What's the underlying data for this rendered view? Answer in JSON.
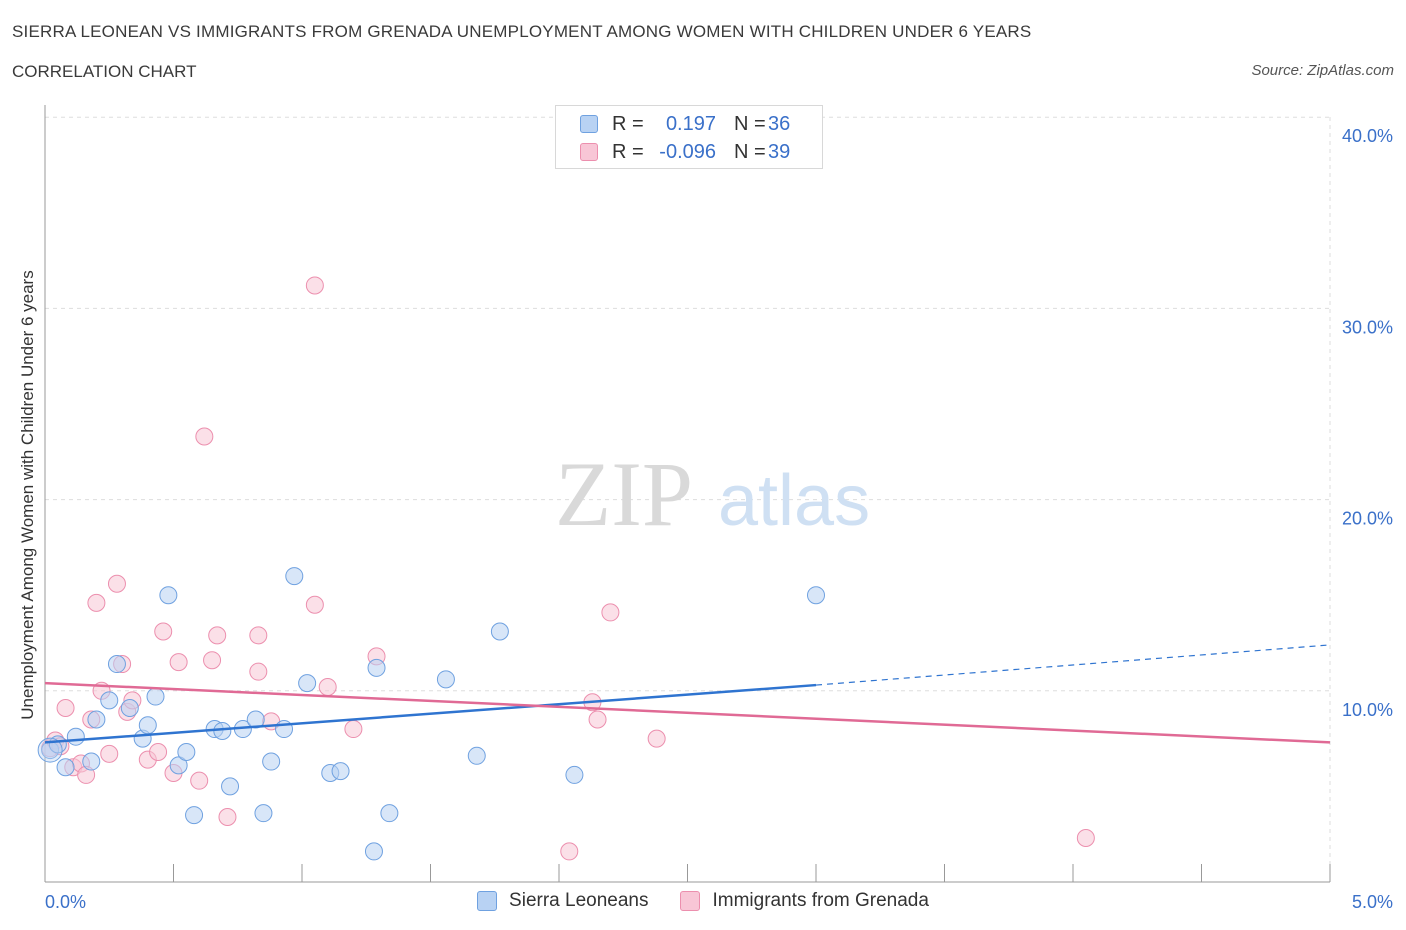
{
  "header": {
    "title": "SIERRA LEONEAN VS IMMIGRANTS FROM GRENADA UNEMPLOYMENT AMONG WOMEN WITH CHILDREN UNDER 6 YEARS",
    "subtitle": "CORRELATION CHART",
    "source": "Source: ZipAtlas.com"
  },
  "watermark": {
    "zip": "ZIP",
    "atlas": "atlas"
  },
  "legend": {
    "rows": [
      {
        "r_label": "R =",
        "r_value": "0.197",
        "n_label": "N =",
        "n_value": "36"
      },
      {
        "r_label": "R =",
        "r_value": "-0.096",
        "n_label": "N =",
        "n_value": "39"
      }
    ]
  },
  "colors": {
    "blue_fill": "#b8d2f3",
    "blue_stroke": "#6fa1e0",
    "blue_line": "#2f74d0",
    "pink_fill": "#f8c6d6",
    "pink_stroke": "#ec8fae",
    "pink_line": "#e06a95",
    "axis_text": "#3a70c9",
    "grid": "#dddddd"
  },
  "chart_data": {
    "type": "scatter",
    "title": "SIERRA LEONEAN VS IMMIGRANTS FROM GRENADA UNEMPLOYMENT AMONG WOMEN WITH CHILDREN UNDER 6 YEARS",
    "xlabel": "",
    "ylabel": "Unemployment Among Women with Children Under 6 years",
    "xlim": [
      0,
      5
    ],
    "ylim": [
      0,
      40
    ],
    "x_tick_labels": [
      "0.0%",
      "5.0%"
    ],
    "y_tick_labels": [
      "10.0%",
      "20.0%",
      "30.0%",
      "40.0%"
    ],
    "y_ticks": [
      10,
      20,
      30,
      40
    ],
    "grid": true,
    "legend_position": "top-center and bottom",
    "series": [
      {
        "name": "Sierra Leoneans",
        "color": "#6fa1e0",
        "r": 0.197,
        "n": 36,
        "trend": {
          "x0": 0.0,
          "y0": 7.3,
          "x1": 3.0,
          "y1": 10.3,
          "dashed_to_x": 5.0,
          "dashed_to_y": 12.4
        },
        "points": [
          [
            0.02,
            6.9
          ],
          [
            0.05,
            7.2
          ],
          [
            0.08,
            6.0
          ],
          [
            0.12,
            7.6
          ],
          [
            0.18,
            6.3
          ],
          [
            0.2,
            8.5
          ],
          [
            0.25,
            9.5
          ],
          [
            0.28,
            11.4
          ],
          [
            0.33,
            9.1
          ],
          [
            0.38,
            7.5
          ],
          [
            0.4,
            8.2
          ],
          [
            0.43,
            9.7
          ],
          [
            0.48,
            15.0
          ],
          [
            0.52,
            6.1
          ],
          [
            0.55,
            6.8
          ],
          [
            0.58,
            3.5
          ],
          [
            0.66,
            8.0
          ],
          [
            0.69,
            7.9
          ],
          [
            0.72,
            5.0
          ],
          [
            0.77,
            8.0
          ],
          [
            0.82,
            8.5
          ],
          [
            0.85,
            3.6
          ],
          [
            0.88,
            6.3
          ],
          [
            0.93,
            8.0
          ],
          [
            0.97,
            16.0
          ],
          [
            1.02,
            10.4
          ],
          [
            1.11,
            5.7
          ],
          [
            1.15,
            5.8
          ],
          [
            1.28,
            1.6
          ],
          [
            1.29,
            11.2
          ],
          [
            1.34,
            3.6
          ],
          [
            1.56,
            10.6
          ],
          [
            1.68,
            6.6
          ],
          [
            1.77,
            13.1
          ],
          [
            2.06,
            5.6
          ],
          [
            3.0,
            15.0
          ]
        ]
      },
      {
        "name": "Immigrants from Grenada",
        "color": "#ec8fae",
        "r": -0.096,
        "n": 39,
        "trend": {
          "x0": 0.0,
          "y0": 10.4,
          "x1": 5.0,
          "y1": 7.3
        },
        "points": [
          [
            0.02,
            7.0
          ],
          [
            0.04,
            7.4
          ],
          [
            0.06,
            7.1
          ],
          [
            0.08,
            9.1
          ],
          [
            0.11,
            6.0
          ],
          [
            0.14,
            6.2
          ],
          [
            0.16,
            5.6
          ],
          [
            0.18,
            8.5
          ],
          [
            0.2,
            14.6
          ],
          [
            0.22,
            10.0
          ],
          [
            0.25,
            6.7
          ],
          [
            0.28,
            15.6
          ],
          [
            0.3,
            11.4
          ],
          [
            0.32,
            8.9
          ],
          [
            0.34,
            9.5
          ],
          [
            0.4,
            6.4
          ],
          [
            0.44,
            6.8
          ],
          [
            0.46,
            13.1
          ],
          [
            0.5,
            5.7
          ],
          [
            0.52,
            11.5
          ],
          [
            0.6,
            5.3
          ],
          [
            0.62,
            23.3
          ],
          [
            0.65,
            11.6
          ],
          [
            0.67,
            12.9
          ],
          [
            0.71,
            3.4
          ],
          [
            0.83,
            12.9
          ],
          [
            0.83,
            11.0
          ],
          [
            0.88,
            8.4
          ],
          [
            1.05,
            31.2
          ],
          [
            1.05,
            14.5
          ],
          [
            1.1,
            10.2
          ],
          [
            1.2,
            8.0
          ],
          [
            1.29,
            11.8
          ],
          [
            2.04,
            1.6
          ],
          [
            2.13,
            9.4
          ],
          [
            2.15,
            8.5
          ],
          [
            2.2,
            14.1
          ],
          [
            2.38,
            7.5
          ],
          [
            4.05,
            2.3
          ]
        ]
      }
    ]
  },
  "bottom_legend": [
    {
      "label": "Sierra Leoneans"
    },
    {
      "label": "Immigrants from Grenada"
    }
  ]
}
